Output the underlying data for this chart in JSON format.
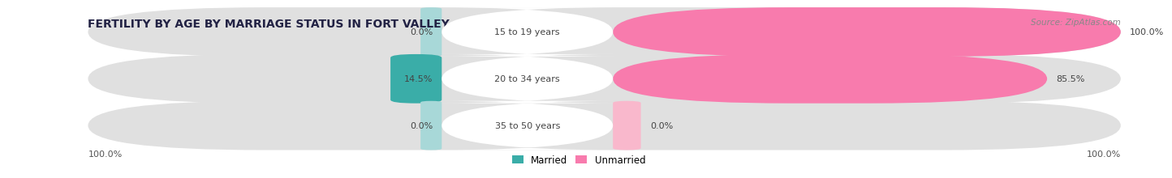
{
  "title": "FERTILITY BY AGE BY MARRIAGE STATUS IN FORT VALLEY",
  "source": "Source: ZipAtlas.com",
  "rows": [
    {
      "label": "15 to 19 years",
      "married": 0.0,
      "unmarried": 100.0,
      "unmarried_small": false
    },
    {
      "label": "20 to 34 years",
      "married": 14.5,
      "unmarried": 85.5,
      "unmarried_small": false
    },
    {
      "label": "35 to 50 years",
      "married": 0.0,
      "unmarried": 0.0,
      "unmarried_small": true
    }
  ],
  "married_color": "#3aada8",
  "married_light_color": "#a8d8d8",
  "unmarried_color": "#f87bad",
  "unmarried_light_color": "#f9b8cc",
  "bar_bg_color": "#e0e0e0",
  "bar_bg_color2": "#ececec",
  "married_label": "Married",
  "unmarried_label": "Unmarried",
  "left_axis_label": "100.0%",
  "right_axis_label": "100.0%",
  "title_fontsize": 10,
  "label_fontsize": 8,
  "value_fontsize": 8,
  "source_fontsize": 7.5
}
